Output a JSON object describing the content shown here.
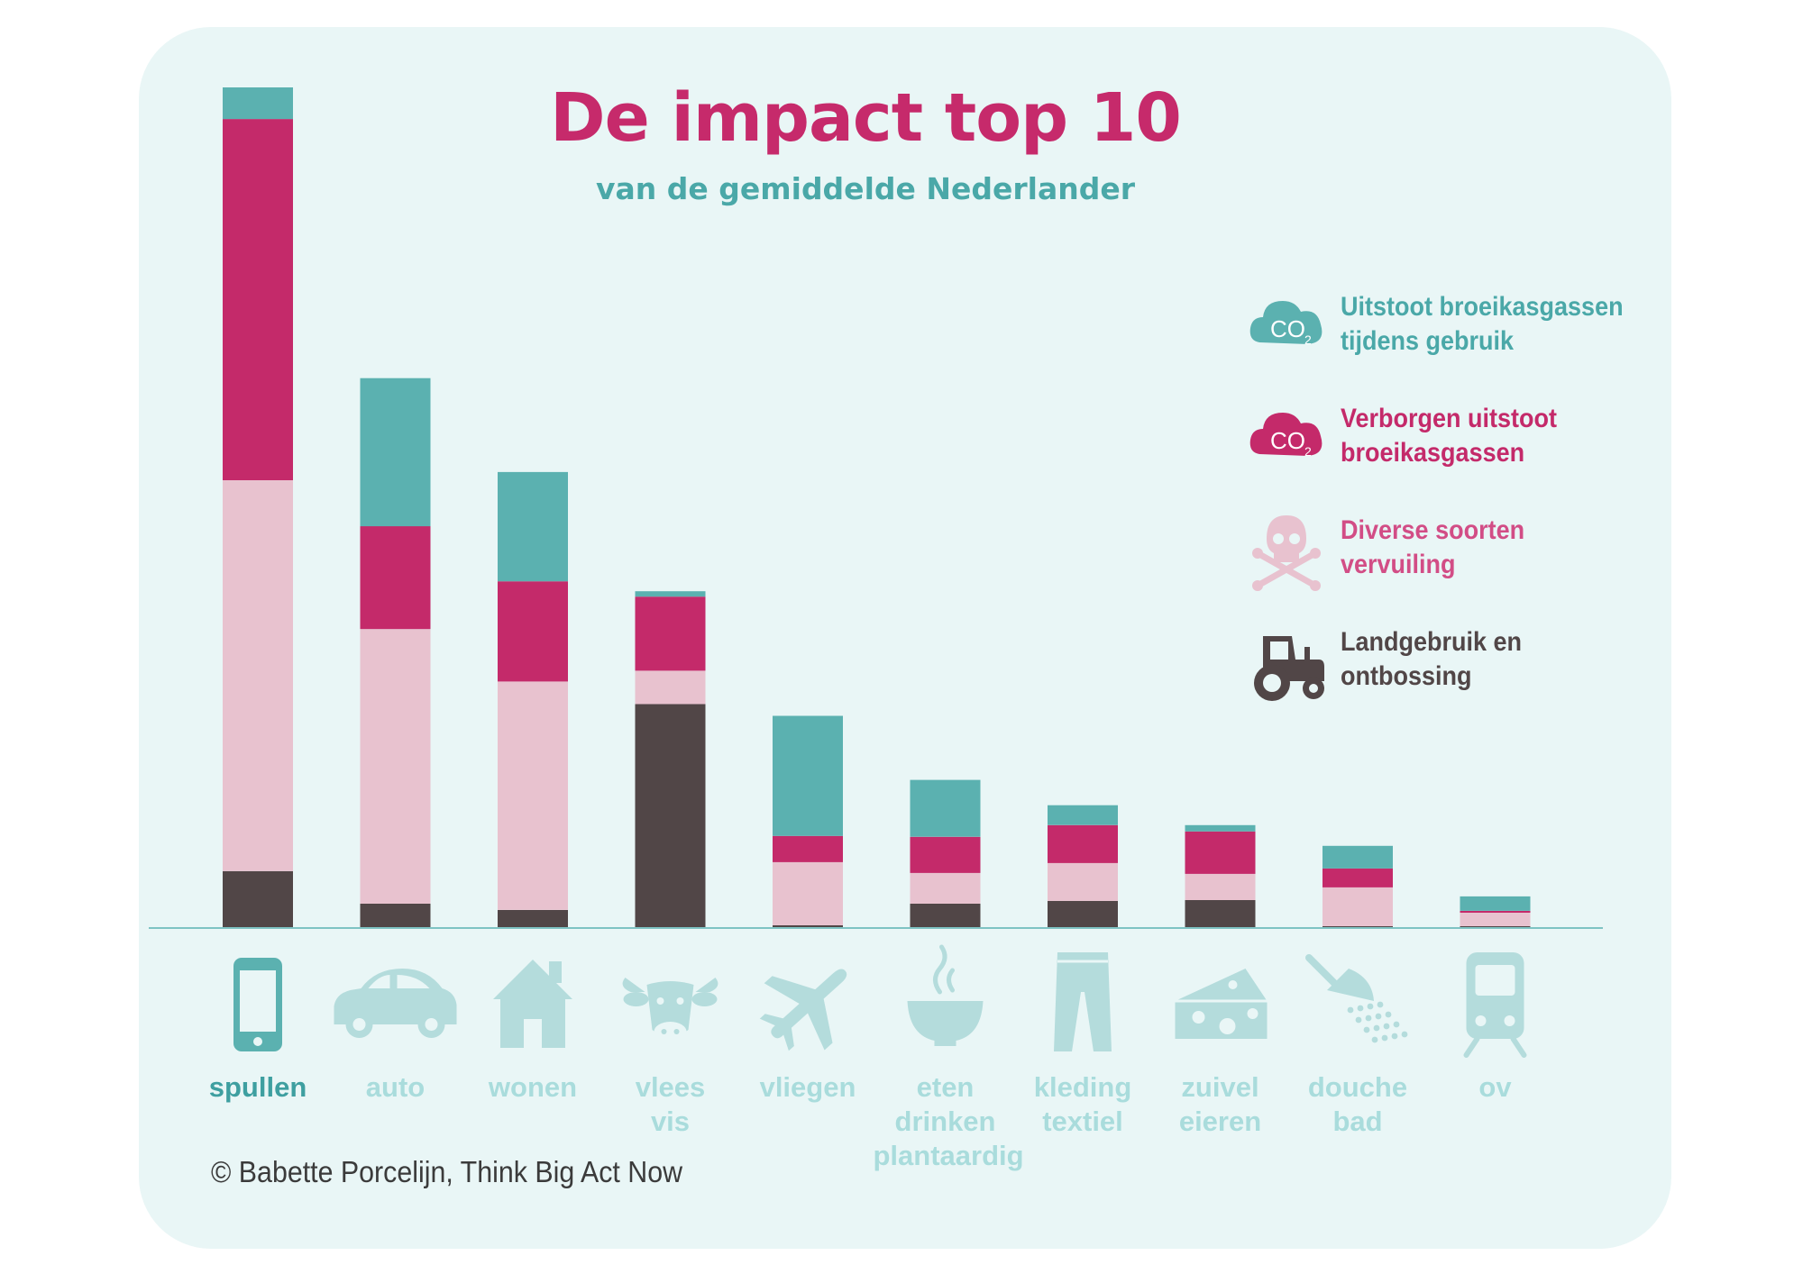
{
  "colors": {
    "background": "#e9f6f6",
    "uitstoot": "#5bb1b0",
    "verborgen": "#c42a6a",
    "vervuiling": "#e8c2cf",
    "landgebruik": "#514647",
    "icon": "#b4dcdc",
    "icon_active": "#5bb1b0"
  },
  "copyright": "© Babette Porcelijn, Think Big Act Now",
  "chart_data": {
    "type": "bar",
    "stacked": true,
    "title": "De impact top 10",
    "subtitle": "van de gemiddelde Nederlander",
    "categories": [
      "spullen",
      "auto",
      "wonen",
      "vlees vis",
      "vliegen",
      "eten drinken plantaardig",
      "kleding textiel",
      "zuivel eieren",
      "douche bad",
      "ov"
    ],
    "category_lines": [
      [
        "spullen"
      ],
      [
        "auto"
      ],
      [
        "wonen"
      ],
      [
        "vlees",
        "vis"
      ],
      [
        "vliegen"
      ],
      [
        "eten",
        "drinken",
        "plantaardig"
      ],
      [
        "kleding",
        "textiel"
      ],
      [
        "zuivel",
        "eieren"
      ],
      [
        "douche",
        "bad"
      ],
      [
        "ov"
      ]
    ],
    "category_icons": [
      "phone-icon",
      "car-icon",
      "house-icon",
      "cow-icon",
      "airplane-icon",
      "bowl-icon",
      "trousers-icon",
      "cheese-icon",
      "shower-icon",
      "train-icon"
    ],
    "highlighted_category": "spullen",
    "ylim": [
      0,
      930
    ],
    "series": [
      {
        "key": "landgebruik",
        "name": "Landgebruik en ontbossing",
        "color": "#514647",
        "icon": "tractor-icon",
        "values": [
          63,
          27,
          20,
          248,
          3,
          27,
          30,
          31,
          2,
          2
        ]
      },
      {
        "key": "vervuiling",
        "name": "Diverse soorten vervuiling",
        "color": "#e8c2cf",
        "icon": "skull-crossbones-icon",
        "values": [
          433,
          304,
          253,
          37,
          70,
          34,
          42,
          29,
          43,
          15
        ]
      },
      {
        "key": "verborgen",
        "name": "Verborgen uitstoot broeikasgassen",
        "color": "#c42a6a",
        "icon": "co2-cloud-icon",
        "values": [
          400,
          114,
          111,
          82,
          29,
          40,
          42,
          47,
          21,
          2
        ]
      },
      {
        "key": "uitstoot",
        "name": "Uitstoot broeikasgassen tijdens gebruik",
        "color": "#5bb1b0",
        "icon": "co2-cloud-icon",
        "values": [
          35,
          164,
          121,
          6,
          133,
          63,
          22,
          7,
          25,
          16
        ]
      }
    ],
    "legend": [
      {
        "key": "uitstoot",
        "lines": [
          "Uitstoot broeikasgassen",
          "tijdens gebruik"
        ],
        "icon_text": "CO",
        "icon_sub": "2"
      },
      {
        "key": "verborgen",
        "lines": [
          "Verborgen uitstoot",
          "broeikasgassen"
        ],
        "icon_text": "CO",
        "icon_sub": "2"
      },
      {
        "key": "vervuiling",
        "lines": [
          "Diverse soorten",
          "vervuiling"
        ]
      },
      {
        "key": "landgebruik",
        "lines": [
          "Landgebruik en",
          "ontbossing"
        ]
      }
    ],
    "legend_position": "right",
    "grid": false
  }
}
